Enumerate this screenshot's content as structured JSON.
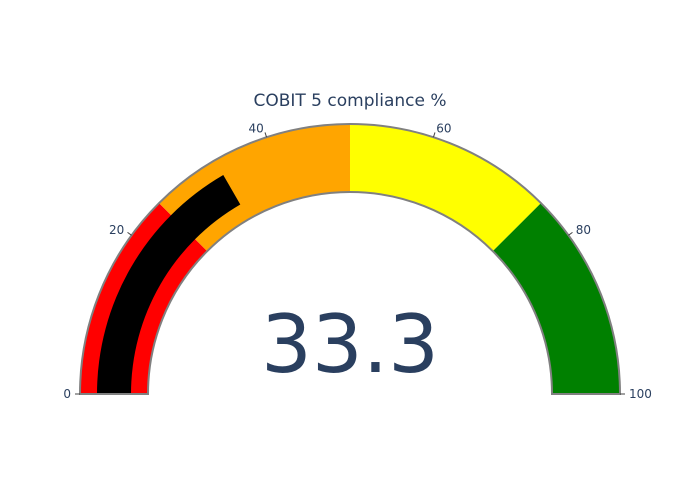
{
  "chart_data": {
    "type": "gauge",
    "title": "COBIT 5 compliance %",
    "value": 33.3,
    "value_label": "33.3",
    "range": [
      0,
      100
    ],
    "ticks": [
      0,
      20,
      40,
      60,
      80,
      100
    ],
    "tick_labels": [
      "0",
      "20",
      "40",
      "60",
      "80",
      "100"
    ],
    "steps": [
      {
        "from": 0,
        "to": 25,
        "color": "#ff0000"
      },
      {
        "from": 25,
        "to": 50,
        "color": "#ffa500"
      },
      {
        "from": 50,
        "to": 75,
        "color": "#ffff00"
      },
      {
        "from": 75,
        "to": 100,
        "color": "#008000"
      }
    ],
    "bar_color": "#000000",
    "border_color": "#808080"
  }
}
